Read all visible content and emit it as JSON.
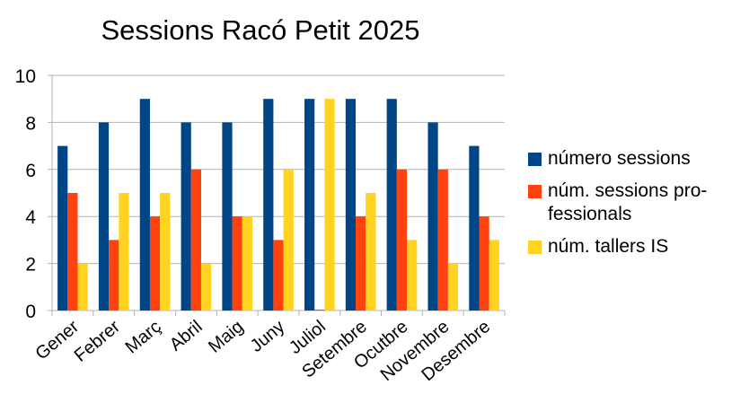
{
  "chart_data": {
    "type": "bar",
    "title": "Sessions Racó Petit 2025",
    "categories": [
      "Gener",
      "Febrer",
      "Març",
      "Abril",
      "Maig",
      "Juny",
      "Juliol",
      "Setembre",
      "Ocutbre",
      "Novembre",
      "Desembre"
    ],
    "series": [
      {
        "name": "número sessions",
        "color": "#004586",
        "values": [
          7,
          8,
          9,
          8,
          8,
          9,
          9,
          9,
          9,
          8,
          7
        ]
      },
      {
        "name": "núm. sessions pro-fessionals",
        "name_lines": [
          "núm. sessions pro-",
          "fessionals"
        ],
        "color": "#ff420e",
        "values": [
          5,
          3,
          4,
          6,
          4,
          3,
          0,
          4,
          6,
          6,
          4
        ]
      },
      {
        "name": "núm. tallers IS",
        "color": "#ffd320",
        "values": [
          2,
          5,
          5,
          2,
          4,
          6,
          9,
          5,
          3,
          2,
          3
        ]
      }
    ],
    "ylim": [
      0,
      10
    ],
    "yticks": [
      0,
      2,
      4,
      6,
      8,
      10
    ],
    "grid": true,
    "legend": "right"
  }
}
